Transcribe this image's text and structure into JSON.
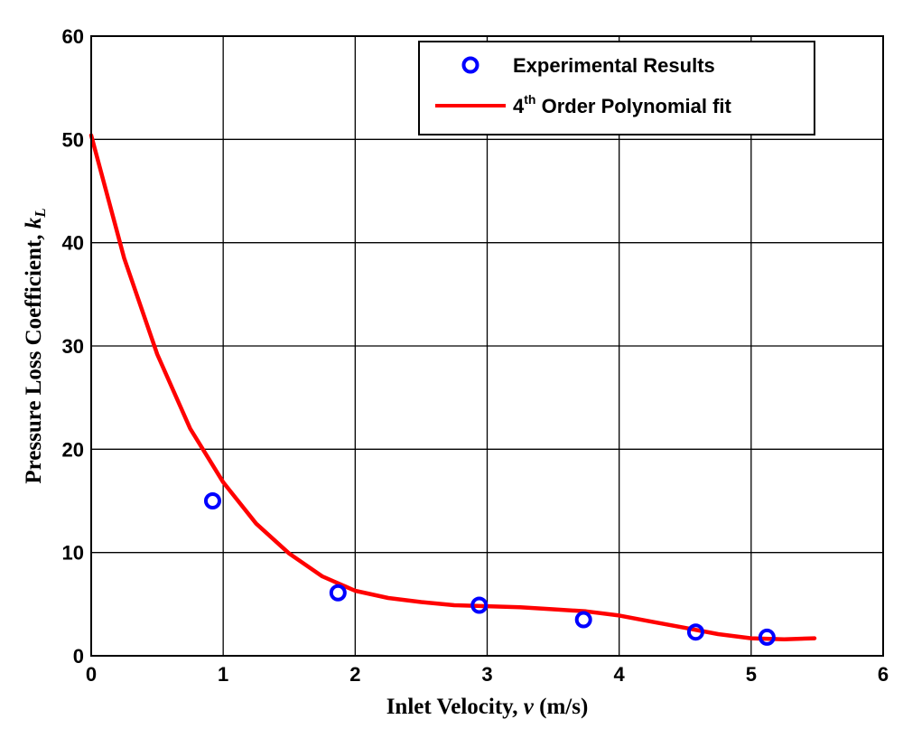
{
  "chart_data": {
    "type": "scatter",
    "title": "",
    "xlabel": {
      "prefix": "Inlet Velocity, ",
      "var": "v",
      "suffix": " (m/s)"
    },
    "ylabel": {
      "prefix": "Pressure Loss Coefficient, ",
      "var": "k",
      "sub": "L"
    },
    "xlim": [
      0,
      6
    ],
    "ylim": [
      0,
      60
    ],
    "xticks": [
      0,
      1,
      2,
      3,
      4,
      5,
      6
    ],
    "yticks": [
      0,
      10,
      20,
      30,
      40,
      50,
      60
    ],
    "grid": true,
    "legend_position": "top-right",
    "series": [
      {
        "name": "Experimental Results",
        "kind": "markers",
        "color": "#0000ff",
        "x": [
          0.92,
          1.87,
          2.94,
          3.73,
          4.58,
          5.12
        ],
        "y": [
          15.0,
          6.1,
          4.9,
          3.5,
          2.3,
          1.8
        ]
      },
      {
        "name": {
          "base": "4",
          "sup": "th",
          "rest": " Order Polynomial fit"
        },
        "kind": "line",
        "color": "#ff0000",
        "x": [
          0,
          0.25,
          0.5,
          0.75,
          1.0,
          1.25,
          1.5,
          1.75,
          2.0,
          2.25,
          2.5,
          2.75,
          3.0,
          3.25,
          3.5,
          3.75,
          4.0,
          4.25,
          4.5,
          4.75,
          5.0,
          5.25,
          5.48
        ],
        "y": [
          50.4,
          38.5,
          29.2,
          22.0,
          16.8,
          12.8,
          9.9,
          7.7,
          6.3,
          5.6,
          5.2,
          4.9,
          4.8,
          4.7,
          4.5,
          4.3,
          3.9,
          3.3,
          2.7,
          2.1,
          1.7,
          1.6,
          1.7
        ]
      }
    ]
  }
}
